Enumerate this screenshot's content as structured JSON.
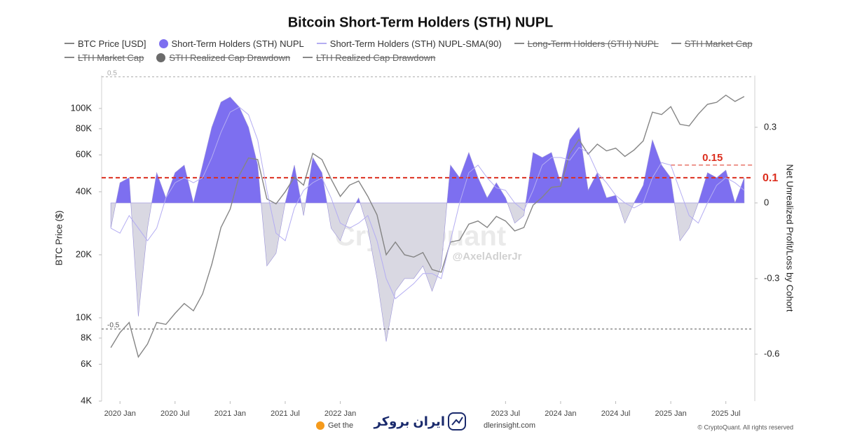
{
  "chart_data": {
    "type": "area",
    "title": "Bitcoin Short-Term Holders (STH) NUPL",
    "y_label": "BTC Price ($)",
    "y2_label": "Net Unrealized Profit/Loss by Cohort",
    "x": [
      "2019-12",
      "2020-01",
      "2020-02",
      "2020-03",
      "2020-04",
      "2020-05",
      "2020-06",
      "2020-07",
      "2020-08",
      "2020-09",
      "2020-10",
      "2020-11",
      "2020-12",
      "2021-01",
      "2021-02",
      "2021-03",
      "2021-04",
      "2021-05",
      "2021-06",
      "2021-07",
      "2021-08",
      "2021-09",
      "2021-10",
      "2021-11",
      "2021-12",
      "2022-01",
      "2022-02",
      "2022-03",
      "2022-04",
      "2022-05",
      "2022-06",
      "2022-07",
      "2022-08",
      "2022-09",
      "2022-10",
      "2022-11",
      "2022-12",
      "2023-01",
      "2023-02",
      "2023-03",
      "2023-04",
      "2023-05",
      "2023-06",
      "2023-07",
      "2023-08",
      "2023-09",
      "2023-10",
      "2023-11",
      "2023-12",
      "2024-01",
      "2024-02",
      "2024-03",
      "2024-04",
      "2024-05",
      "2024-06",
      "2024-07",
      "2024-08",
      "2024-09",
      "2024-10",
      "2024-11",
      "2024-12",
      "2025-01",
      "2025-02",
      "2025-03",
      "2025-04",
      "2025-05",
      "2025-06",
      "2025-07",
      "2025-08",
      "2025-09"
    ],
    "series": [
      {
        "name": "BTC Price [USD]",
        "type": "line",
        "axis": "y",
        "color": "#858585",
        "values": [
          7200,
          8500,
          9500,
          6500,
          7500,
          9500,
          9300,
          10500,
          11700,
          10800,
          13000,
          18000,
          27000,
          33000,
          48000,
          58000,
          57000,
          37000,
          35000,
          40000,
          47000,
          43000,
          61000,
          57000,
          46000,
          38000,
          43000,
          45000,
          38000,
          31000,
          20000,
          23000,
          20000,
          19500,
          20500,
          17000,
          16500,
          23000,
          23500,
          28000,
          29000,
          27000,
          30500,
          29000,
          26000,
          27000,
          34500,
          37700,
          42000,
          42500,
          61000,
          71000,
          60500,
          67500,
          62700,
          64600,
          59000,
          63300,
          70000,
          96000,
          93500,
          102000,
          84000,
          82500,
          94000,
          104600,
          107000,
          115700,
          108000,
          114000
        ]
      },
      {
        "name": "Short-Term Holders (STH) NUPL",
        "type": "area",
        "axis": "y2",
        "color": "#7d6ff0",
        "negative_color": "#d9d8e2",
        "values": [
          -0.1,
          0.08,
          0.1,
          -0.45,
          -0.1,
          0.12,
          0.02,
          0.12,
          0.15,
          0.0,
          0.15,
          0.3,
          0.4,
          0.42,
          0.38,
          0.3,
          0.15,
          -0.25,
          -0.2,
          0.0,
          0.15,
          -0.05,
          0.18,
          0.12,
          -0.1,
          -0.15,
          -0.05,
          0.02,
          -0.1,
          -0.3,
          -0.55,
          -0.35,
          -0.3,
          -0.3,
          -0.25,
          -0.35,
          -0.25,
          0.15,
          0.1,
          0.2,
          0.1,
          0.02,
          0.08,
          0.02,
          -0.08,
          -0.05,
          0.2,
          0.18,
          0.2,
          0.08,
          0.25,
          0.3,
          0.05,
          0.12,
          0.02,
          0.03,
          -0.08,
          0.0,
          0.07,
          0.25,
          0.15,
          0.1,
          -0.15,
          -0.1,
          0.0,
          0.12,
          0.1,
          0.13,
          0.0,
          0.1
        ]
      },
      {
        "name": "Short-Term Holders (STH) NUPL-SMA(90)",
        "type": "line",
        "axis": "y2",
        "color": "#b4adf2",
        "values": [
          -0.1,
          -0.12,
          -0.05,
          -0.1,
          -0.15,
          -0.1,
          0.02,
          0.08,
          0.1,
          0.08,
          0.1,
          0.18,
          0.28,
          0.36,
          0.38,
          0.35,
          0.25,
          0.05,
          -0.12,
          -0.15,
          -0.02,
          0.05,
          0.08,
          0.1,
          0.02,
          -0.08,
          -0.1,
          -0.08,
          -0.05,
          -0.15,
          -0.3,
          -0.38,
          -0.35,
          -0.32,
          -0.28,
          -0.28,
          -0.3,
          -0.15,
          0.0,
          0.12,
          0.15,
          0.1,
          0.06,
          0.05,
          0.0,
          -0.03,
          0.05,
          0.15,
          0.18,
          0.18,
          0.17,
          0.22,
          0.2,
          0.12,
          0.08,
          0.03,
          0.0,
          -0.02,
          0.0,
          0.1,
          0.16,
          0.15,
          0.05,
          -0.05,
          -0.08,
          0.0,
          0.07,
          0.1,
          0.08,
          0.05
        ]
      }
    ],
    "hidden_series": [
      {
        "name": "Long-Term Holders (STH) NUPL",
        "color": "#888888"
      },
      {
        "name": "STH Market Cap",
        "color": "#888888"
      },
      {
        "name": "LTH Market Cap",
        "color": "#888888"
      },
      {
        "name": "STH Realized Cap Drawdown",
        "color": "#6b6b6b",
        "symbol": "dot"
      },
      {
        "name": "LTH Realized Cap Drawdown",
        "color": "#888888"
      }
    ],
    "xlim": [
      "2019-11",
      "2025-10"
    ],
    "xticks": [
      {
        "value": "2020-01",
        "label": "2020 Jan"
      },
      {
        "value": "2020-07",
        "label": "2020 Jul"
      },
      {
        "value": "2021-01",
        "label": "2021 Jan"
      },
      {
        "value": "2021-07",
        "label": "2021 Jul"
      },
      {
        "value": "2022-01",
        "label": "2022 Jan"
      },
      {
        "value": "2023-07",
        "label": "2023 Jul"
      },
      {
        "value": "2024-01",
        "label": "2024 Jan"
      },
      {
        "value": "2024-07",
        "label": "2024 Jul"
      },
      {
        "value": "2025-01",
        "label": "2025 Jan"
      },
      {
        "value": "2025-07",
        "label": "2025 Jul"
      }
    ],
    "y_log": true,
    "ylim": [
      4000,
      143500
    ],
    "yticks": [
      {
        "value": 4000,
        "label": "4K"
      },
      {
        "value": 6000,
        "label": "6K"
      },
      {
        "value": 8000,
        "label": "8K"
      },
      {
        "value": 10000,
        "label": "10K"
      },
      {
        "value": 20000,
        "label": "20K"
      },
      {
        "value": 40000,
        "label": "40K"
      },
      {
        "value": 60000,
        "label": "60K"
      },
      {
        "value": 80000,
        "label": "80K"
      },
      {
        "value": 100000,
        "label": "100K"
      }
    ],
    "y2lim": [
      -0.786,
      0.505
    ],
    "y2ticks": [
      -0.6,
      -0.3,
      0,
      0.3
    ],
    "reference_lines": [
      {
        "value": 0.5,
        "label": "0.5",
        "color": "#aaaaaa",
        "label_side": "left"
      },
      {
        "value": -0.5,
        "label": "-0.5",
        "color": "#555555",
        "label_side": "left"
      },
      {
        "value": 0.1,
        "label": "0.1",
        "color": "#dc2f1f",
        "label_side": "right",
        "bold": true
      },
      {
        "value": 0.15,
        "label": "0.15",
        "color": "#dc2f1f",
        "label_side": "inside",
        "bold": true,
        "x_from": "2025-01"
      }
    ],
    "grid": false,
    "watermark": "CryptoQuant",
    "watermark_handle": "@AxelAdlerJr",
    "footer_left": "Get the",
    "footer_mid": "dlerinsight.com",
    "footer_logo": "ایران بروکر",
    "copyright": "© CryptoQuant. All rights reserved"
  }
}
